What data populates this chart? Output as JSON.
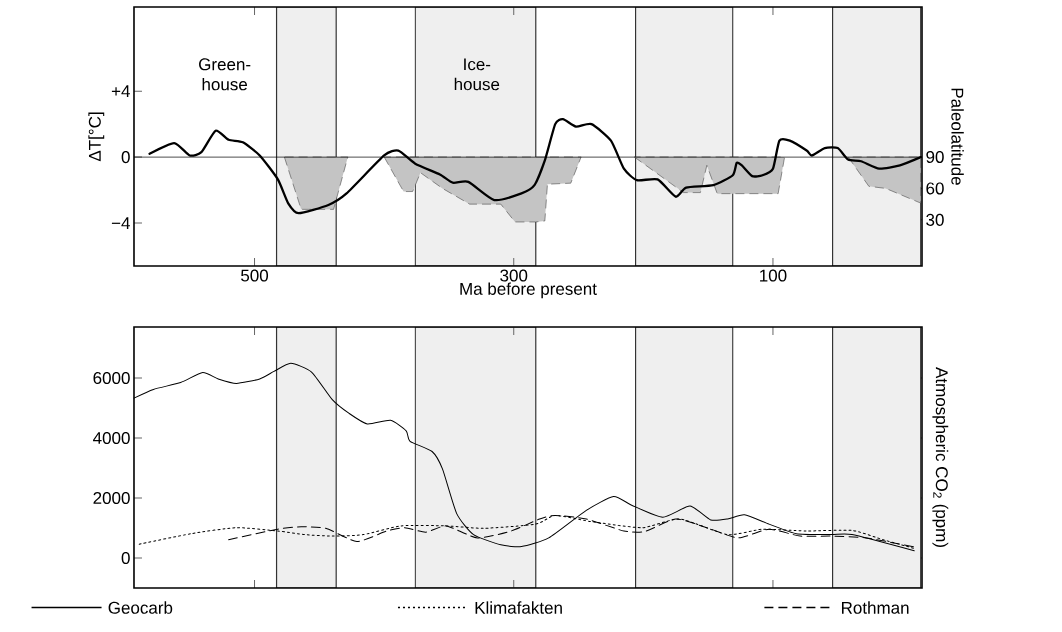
{
  "chart_data": [
    {
      "type": "line",
      "xlabel": "Ma before present",
      "ylabel": "ΔT[°C]",
      "y2label": "Paleolatitude",
      "annotations": [
        "Green-house",
        "Ice-house"
      ],
      "xlim": [
        593,
        -15
      ],
      "xticks": [
        500,
        300,
        100
      ],
      "ylim": [
        -6.6,
        9.1
      ],
      "yticks": [
        {
          "value": -4,
          "label": "−4"
        },
        0,
        {
          "value": 4,
          "label": "+4"
        }
      ],
      "y2lim": [
        -14,
        233
      ],
      "y2ticks": [
        30,
        60,
        90
      ],
      "ref_lines": [
        {
          "axis": "y",
          "value": 0
        }
      ],
      "bands": [
        {
          "axis": "x",
          "from": 483,
          "to": 437,
          "color": "#efefef"
        },
        {
          "axis": "x",
          "from": 376,
          "to": 283,
          "color": "#efefef"
        },
        {
          "axis": "x",
          "from": 206,
          "to": 131,
          "color": "#efefef"
        },
        {
          "axis": "x",
          "from": 54,
          "to": -14,
          "color": "#efefef"
        }
      ],
      "series": [
        {
          "type": "line",
          "color": "#000000",
          "x": [
            581,
            562,
            550,
            541,
            530,
            520,
            509,
            496,
            482,
            474,
            466,
            443,
            429,
            400,
            389,
            376,
            357,
            347,
            335,
            315,
            294,
            284,
            276,
            268,
            262,
            252,
            240,
            225,
            215,
            205,
            189,
            175,
            167,
            146,
            131,
            128,
            124,
            116,
            108,
            100,
            95,
            87,
            74,
            70,
            60,
            50,
            42,
            32,
            18,
            2,
            -14
          ],
          "values": [
            0.2,
            0.85,
            0.1,
            0.3,
            1.6,
            1.05,
            0.9,
            0.1,
            -1.35,
            -2.8,
            -3.4,
            -2.9,
            -2.2,
            0.1,
            0.4,
            -0.4,
            -1.05,
            -1.55,
            -1.5,
            -2.6,
            -2.2,
            -1.7,
            -0.2,
            2.0,
            2.3,
            1.85,
            2.0,
            1.0,
            -0.7,
            -1.4,
            -1.35,
            -2.4,
            -1.85,
            -1.7,
            -1.1,
            -0.35,
            -0.5,
            -1.15,
            -1.1,
            -0.7,
            1.0,
            1.0,
            0.4,
            0.1,
            0.55,
            0.55,
            -0.15,
            -0.25,
            -0.7,
            -0.5,
            0.0
          ]
        },
        {
          "type": "area",
          "axis": "y2",
          "color": "#c4c4c4",
          "line_style": "dashed",
          "x": [
            477,
            464,
            439,
            428,
            null,
            400,
            385,
            378,
            372,
            355,
            334,
            310,
            299,
            283,
            276,
            274,
            256,
            248,
            null,
            207,
            169,
            156,
            151,
            143,
            96,
            91,
            null,
            42,
            26,
            13,
            -14,
            -14
          ],
          "values": [
            90,
            40,
            40,
            90,
            null,
            90,
            57,
            57,
            75,
            60,
            45,
            45,
            28,
            28,
            29,
            64,
            65,
            90,
            null,
            90,
            56,
            56,
            82,
            55,
            55,
            90,
            null,
            90,
            62,
            60,
            46,
            90
          ]
        }
      ]
    },
    {
      "type": "line",
      "y2label": "Atmospheric CO$_{2}$ (ppm)",
      "legend": "bottom",
      "tick_labels": "y",
      "xlim": [
        593,
        -15
      ],
      "xticks": [
        500,
        300,
        100
      ],
      "ylim": [
        -1000,
        7700
      ],
      "yticks": [
        0,
        2000,
        4000,
        6000
      ],
      "bands": [
        {
          "axis": "x",
          "from": 483,
          "to": 437,
          "color": "#efefef"
        },
        {
          "axis": "x",
          "from": 376,
          "to": 283,
          "color": "#efefef"
        },
        {
          "axis": "x",
          "from": 206,
          "to": 131,
          "color": "#efefef"
        },
        {
          "axis": "x",
          "from": 54,
          "to": -14,
          "color": "#efefef"
        }
      ],
      "series": [
        {
          "name": "Geocarb",
          "color": "#000000",
          "line_style": "solid",
          "x": [
            593,
            578,
            557,
            540,
            528,
            514,
            496,
            485,
            472,
            456,
            440,
            427,
            413,
            395,
            383,
            380,
            363,
            355,
            344,
            331,
            310,
            294,
            273,
            244,
            223,
            209,
            185,
            164,
            148,
            135,
            122,
            103,
            82,
            55,
            39,
            -9
          ],
          "values": [
            5330,
            5620,
            5850,
            6180,
            5970,
            5820,
            5970,
            6220,
            6490,
            6200,
            5280,
            4820,
            4470,
            4590,
            4240,
            3890,
            3550,
            2970,
            1480,
            780,
            440,
            380,
            670,
            1590,
            2050,
            1760,
            1360,
            1730,
            1270,
            1300,
            1440,
            1130,
            810,
            780,
            780,
            240
          ]
        },
        {
          "name": "Klimafakten",
          "color": "#000000",
          "line_style": "dotted",
          "x": [
            589,
            549,
            514,
            482,
            461,
            440,
            416,
            387,
            352,
            323,
            283,
            268,
            241,
            201,
            172,
            135,
            108,
            74,
            39,
            15,
            -9
          ],
          "values": [
            460,
            810,
            1010,
            900,
            780,
            730,
            780,
            1070,
            1070,
            990,
            1130,
            1420,
            1220,
            1010,
            1300,
            780,
            960,
            900,
            920,
            610,
            320
          ]
        },
        {
          "name": "Rothman",
          "color": "#000000",
          "line_style": "dashed",
          "x": [
            520,
            482,
            464,
            445,
            421,
            398,
            384,
            368,
            352,
            328,
            302,
            280,
            268,
            244,
            215,
            199,
            175,
            151,
            127,
            103,
            79,
            55,
            28,
            -11
          ],
          "values": [
            610,
            960,
            1040,
            990,
            550,
            900,
            1010,
            860,
            1070,
            670,
            900,
            1300,
            1420,
            1300,
            900,
            880,
            1300,
            1010,
            670,
            960,
            730,
            730,
            670,
            350
          ]
        }
      ]
    }
  ]
}
